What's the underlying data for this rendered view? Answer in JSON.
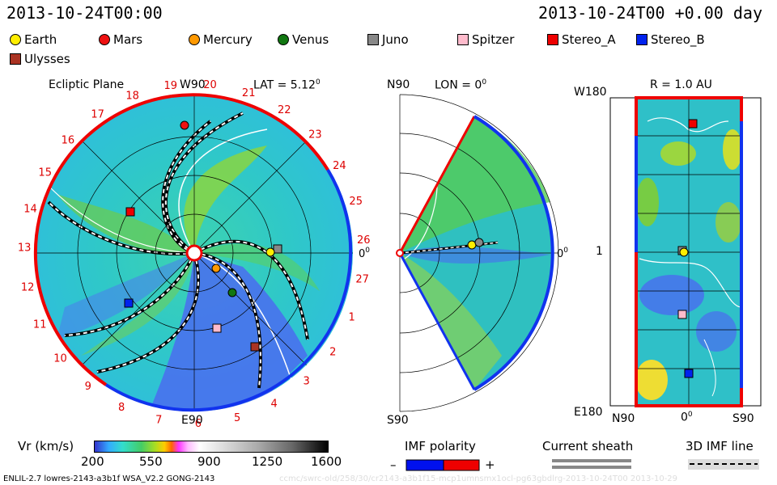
{
  "header": {
    "timestamp": "2013-10-24T00:00",
    "elapsed": "2013-10-24T00 +0.00 day"
  },
  "legend": [
    {
      "label": "Earth",
      "color": "#ffee00",
      "shape": "circle"
    },
    {
      "label": "Mars",
      "color": "#ee1111",
      "shape": "circle"
    },
    {
      "label": "Mercury",
      "color": "#ff9900",
      "shape": "circle"
    },
    {
      "label": "Venus",
      "color": "#117711",
      "shape": "circle"
    },
    {
      "label": "Juno",
      "color": "#888888",
      "shape": "square"
    },
    {
      "label": "Spitzer",
      "color": "#ffbbcc",
      "shape": "square"
    },
    {
      "label": "Stereo_A",
      "color": "#ee0000",
      "shape": "square"
    },
    {
      "label": "Stereo_B",
      "color": "#0022ee",
      "shape": "square"
    },
    {
      "label": "Ulysses",
      "color": "#aa3322",
      "shape": "square"
    }
  ],
  "panel1": {
    "title": "Ecliptic Plane",
    "lat": "LAT = 5.12",
    "lat_sup": "0",
    "top_label": "W90",
    "bottom_label": "E90",
    "right_label": "0",
    "right_sup": "0",
    "carrington_ticks": [
      "19",
      "20",
      "21",
      "22",
      "23",
      "24",
      "25",
      "26",
      "27",
      "1",
      "2",
      "3",
      "4",
      "5",
      "6",
      "7",
      "8",
      "9",
      "10",
      "11",
      "12",
      "13",
      "14",
      "15",
      "16",
      "17",
      "18"
    ]
  },
  "panel2": {
    "top_label": "N90",
    "lon": "LON = 0",
    "lon_sup": "0",
    "bottom_label": "S90",
    "right_label": "0",
    "right_sup": "0"
  },
  "panel3": {
    "title": "R = 1.0 AU",
    "y_top": "W180",
    "y_mid": "1",
    "y_bottom": "E180",
    "x_left": "N90",
    "x_mid": "0",
    "x_mid_sup": "0",
    "x_right": "S90"
  },
  "colorbar": {
    "label": "Vr (km/s)",
    "ticks": [
      "200",
      "550",
      "900",
      "1250",
      "1600"
    ]
  },
  "imf": {
    "label": "IMF polarity",
    "minus": "–",
    "plus": "+",
    "neg_color": "#0011ee",
    "pos_color": "#ee0000"
  },
  "current_sheath": {
    "label": "Current sheath"
  },
  "imf_line": {
    "label": "3D IMF line"
  },
  "footer": {
    "left": "ENLIL-2.7 lowres-2143-a3b1f WSA_V2.2 GONG-2143",
    "right": "ccmc/swrc-old/258/30/cr2143-a3b1f15-mcp1umnsmx1ocl-pg63gbdlrg-2013-10-24T00    2013-10-29"
  }
}
